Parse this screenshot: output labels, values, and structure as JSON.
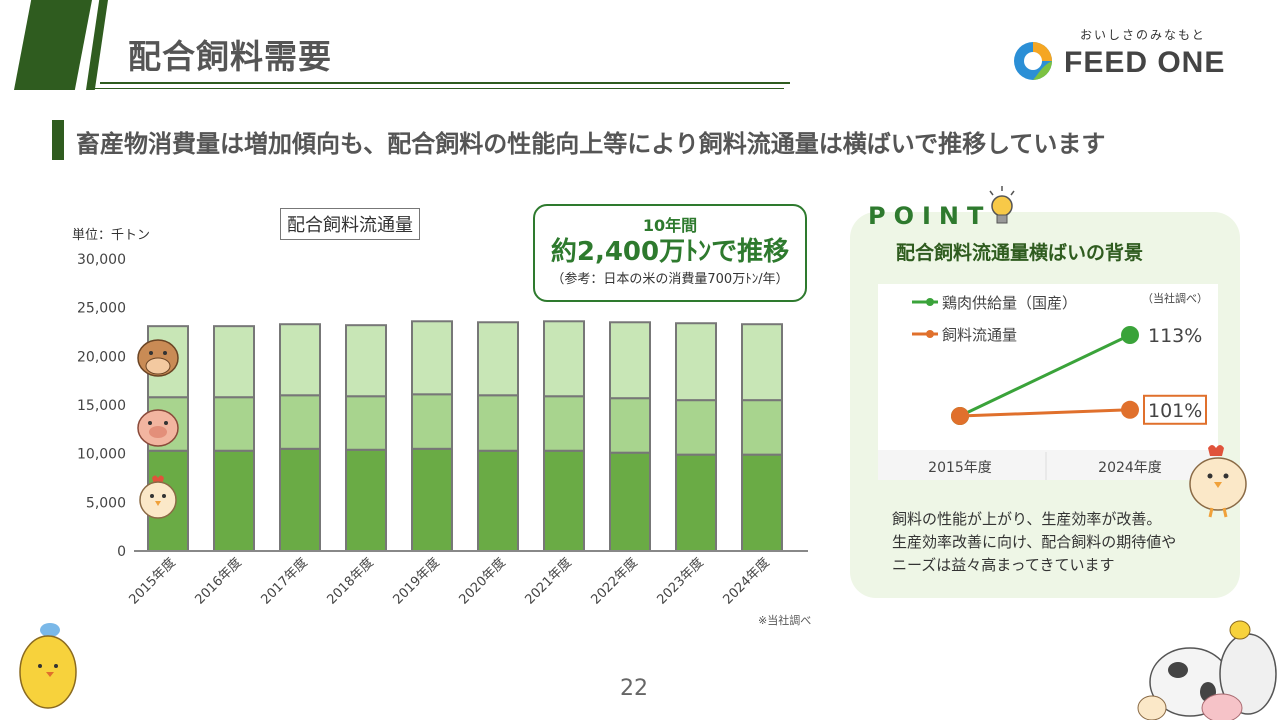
{
  "header": {
    "title": "配合飼料需要"
  },
  "logo": {
    "tagline": "おいしさのみなもと",
    "name": "FEED ONE"
  },
  "subtitle": "畜産物消費量は増加傾向も、配合飼料の性能向上等により飼料流通量は横ばいで推移しています",
  "colors": {
    "dark_green": "#2f5c1f",
    "bar_bottom": "#6aab45",
    "bar_mid": "#a8d48e",
    "bar_top": "#c8e6b6",
    "orange": "#e0702c",
    "green_line": "#3aa33a"
  },
  "chart_unit": "単位：千トン",
  "highlight": {
    "line1": "10年間",
    "line2": "約2,400万ﾄﾝで推移",
    "line3": "（参考：日本の米の消費量700万ﾄﾝ/年）"
  },
  "note": "※当社調べ",
  "chart_data": [
    {
      "type": "bar",
      "title": "配合飼料流通量",
      "stacked": true,
      "categories": [
        "2015年度",
        "2016年度",
        "2017年度",
        "2018年度",
        "2019年度",
        "2020年度",
        "2021年度",
        "2022年度",
        "2023年度",
        "2024年度"
      ],
      "series": [
        {
          "values": [
            10300,
            10300,
            10500,
            10400,
            10500,
            10300,
            10300,
            10100,
            9900,
            9900
          ]
        },
        {
          "values": [
            5500,
            5500,
            5500,
            5500,
            5600,
            5700,
            5600,
            5600,
            5600,
            5600
          ]
        },
        {
          "values": [
            7300,
            7300,
            7300,
            7300,
            7500,
            7500,
            7700,
            7800,
            7900,
            7800
          ]
        }
      ],
      "y_ticks": [
        "0",
        "5,000",
        "10,000",
        "15,000",
        "20,000",
        "25,000",
        "30,000"
      ],
      "ylim": [
        0,
        30000
      ],
      "icons": [
        "cow-icon",
        "pig-icon",
        "chicken-icon"
      ]
    },
    {
      "type": "line",
      "categories": [
        "2015年度",
        "2024年度"
      ],
      "series": [
        {
          "name": "鶏肉供給量（国産）",
          "values": [
            100,
            113
          ],
          "labels": [
            "",
            "113%"
          ]
        },
        {
          "name": "飼料流通量",
          "values": [
            100,
            101
          ],
          "labels": [
            "",
            "101%"
          ]
        }
      ],
      "source": "（当社調べ）"
    }
  ],
  "point": {
    "label": "POINT",
    "title": "配合飼料流通量横ばいの背景",
    "text": [
      "飼料の性能が上がり、生産効率が改善。",
      "生産効率改善に向け、配合飼料の期待値や",
      "ニーズは益々高まってきています"
    ]
  },
  "page_number": "22"
}
